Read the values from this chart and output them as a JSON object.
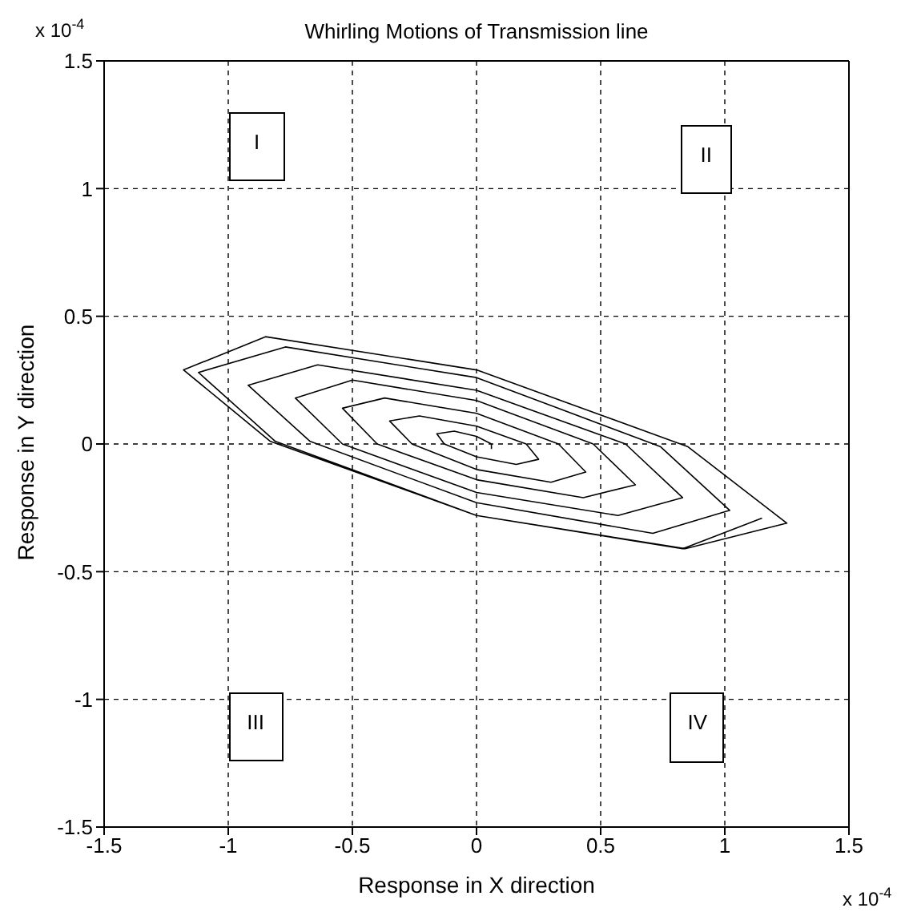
{
  "chart_data": {
    "type": "line",
    "title": "Whirling Motions of Transmission line",
    "xlabel": "Response in X direction",
    "ylabel": "Response in Y direction",
    "annotations": [
      "x 10$^{-4}$",
      "x 10$^{-4}$",
      "I",
      "II",
      "III",
      "IV"
    ],
    "xlim": [
      -1.5,
      1.5
    ],
    "xticks": [
      -1.5,
      -1,
      -0.5,
      0,
      0.5,
      1,
      1.5
    ],
    "ylim": [
      -1.5,
      1.5
    ],
    "yticks": [
      -1.5,
      -1,
      -0.5,
      0,
      0.5,
      1,
      1.5
    ],
    "grid": true,
    "line_style": "solid",
    "series": [
      {
        "color": "#000000",
        "x": [
          0.06,
          0.06,
          0,
          -0.09,
          -0.16,
          -0.13,
          0,
          0.16,
          0.25,
          0.2,
          0,
          -0.23,
          -0.35,
          -0.26,
          0,
          0.3,
          0.44,
          0.33,
          0,
          -0.37,
          -0.54,
          -0.4,
          0,
          0.43,
          0.64,
          0.47,
          0,
          -0.5,
          -0.73,
          -0.54,
          0,
          0.57,
          0.83,
          0.6,
          0,
          -0.64,
          -0.92,
          -0.67,
          0,
          0.71,
          1.02,
          0.74,
          0,
          -0.77,
          -1.12,
          -0.81,
          0,
          0.84,
          1.25,
          0.85,
          0,
          -0.85,
          -1.18,
          -0.83,
          0,
          0.83,
          1.15
        ],
        "values": [
          -0.02,
          0,
          0.03,
          0.05,
          0.04,
          0,
          -0.05,
          -0.08,
          -0.06,
          0,
          0.07,
          0.11,
          0.09,
          0,
          -0.1,
          -0.15,
          -0.11,
          0,
          0.12,
          0.18,
          0.14,
          0,
          -0.14,
          -0.21,
          -0.16,
          0,
          0.17,
          0.25,
          0.18,
          0,
          -0.19,
          -0.28,
          -0.21,
          0,
          0.21,
          0.31,
          0.23,
          0.01,
          -0.23,
          -0.35,
          -0.26,
          -0.01,
          0.26,
          0.38,
          0.28,
          0.01,
          -0.28,
          -0.41,
          -0.31,
          -0.01,
          0.29,
          0.42,
          0.29,
          0.01,
          -0.28,
          -0.41,
          -0.29
        ]
      }
    ]
  }
}
